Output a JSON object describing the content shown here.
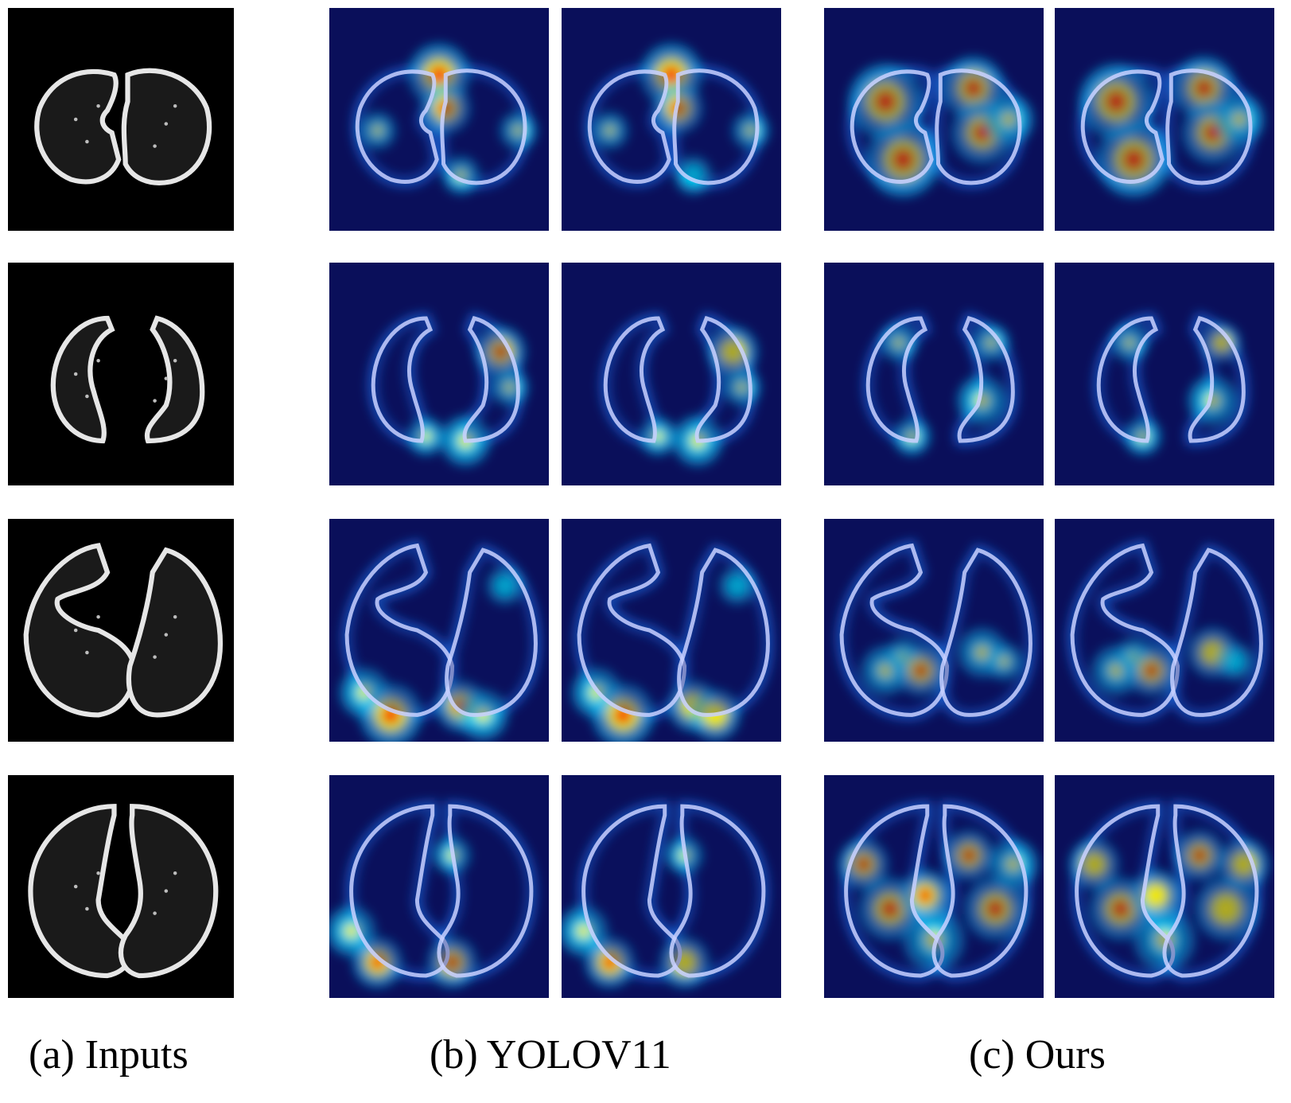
{
  "figure": {
    "captions": {
      "inputs": "(a) Inputs",
      "yolo": "(b) YOLOV11",
      "ours": "(c) Ours"
    },
    "colors": {
      "background": "#ffffff",
      "ct_background": "#000000",
      "heatmap_low": "#0a0f5a",
      "heatmap_mid": "#00e0ff",
      "heatmap_high": "#ff2000",
      "lung_outline": "#c8d0ff"
    },
    "rows": [
      {
        "input": "ct-slice-1",
        "yolo": [
          "gradcam-yolo-1a",
          "gradcam-yolo-1b"
        ],
        "ours": [
          "gradcam-ours-1a",
          "gradcam-ours-1b"
        ]
      },
      {
        "input": "ct-slice-2",
        "yolo": [
          "gradcam-yolo-2a",
          "gradcam-yolo-2b"
        ],
        "ours": [
          "gradcam-ours-2a",
          "gradcam-ours-2b"
        ]
      },
      {
        "input": "ct-slice-3",
        "yolo": [
          "gradcam-yolo-3a",
          "gradcam-yolo-3b"
        ],
        "ours": [
          "gradcam-ours-3a",
          "gradcam-ours-3b"
        ]
      },
      {
        "input": "ct-slice-4",
        "yolo": [
          "gradcam-yolo-4a",
          "gradcam-yolo-4b"
        ],
        "ours": [
          "gradcam-ours-4a",
          "gradcam-ours-4b"
        ]
      }
    ]
  }
}
